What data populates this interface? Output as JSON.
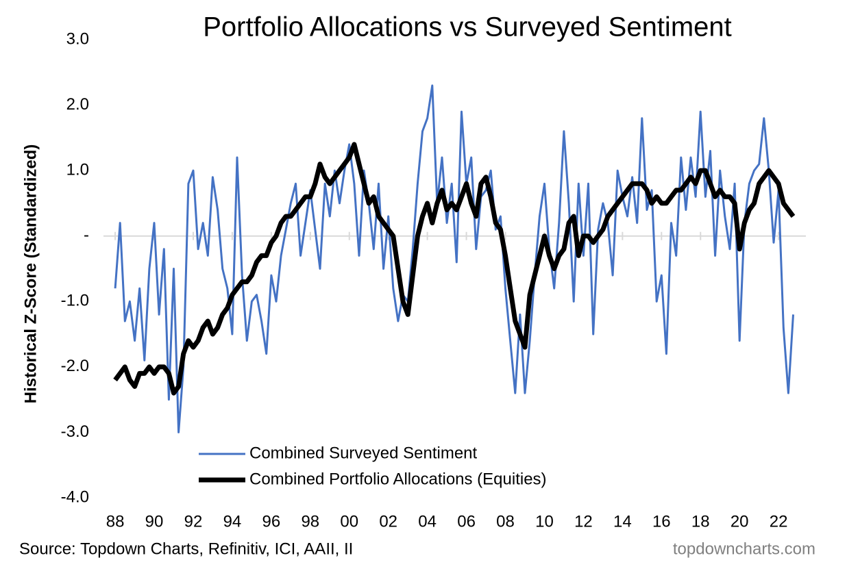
{
  "chart_data": {
    "type": "line",
    "title": "Portfolio Allocations vs Surveyed Sentiment",
    "y_label": "Historical Z-Score (Standardized)",
    "source": "Source: Topdown Charts, Refinitiv, ICI, AAII, II",
    "watermark": "topdowncharts.com",
    "xlim": [
      1987.4,
      2023.4
    ],
    "xticks": [
      {
        "value": 1988,
        "label": "88"
      },
      {
        "value": 1990,
        "label": "90"
      },
      {
        "value": 1992,
        "label": "92"
      },
      {
        "value": 1994,
        "label": "94"
      },
      {
        "value": 1996,
        "label": "96"
      },
      {
        "value": 1998,
        "label": "98"
      },
      {
        "value": 2000,
        "label": "00"
      },
      {
        "value": 2002,
        "label": "02"
      },
      {
        "value": 2004,
        "label": "04"
      },
      {
        "value": 2006,
        "label": "06"
      },
      {
        "value": 2008,
        "label": "08"
      },
      {
        "value": 2010,
        "label": "10"
      },
      {
        "value": 2012,
        "label": "12"
      },
      {
        "value": 2014,
        "label": "14"
      },
      {
        "value": 2016,
        "label": "16"
      },
      {
        "value": 2018,
        "label": "18"
      },
      {
        "value": 2020,
        "label": "20"
      },
      {
        "value": 2022,
        "label": "22"
      }
    ],
    "ylim": [
      -4,
      3
    ],
    "yticks": [
      {
        "value": 3,
        "label": "3.0"
      },
      {
        "value": 2,
        "label": "2.0"
      },
      {
        "value": 1,
        "label": "1.0"
      },
      {
        "value": 0,
        "label": "-"
      },
      {
        "value": -1,
        "label": "-1.0"
      },
      {
        "value": -2,
        "label": "-2.0"
      },
      {
        "value": -3,
        "label": "-3.0"
      },
      {
        "value": -4,
        "label": "-4.0"
      }
    ],
    "zero_line": true,
    "x": [
      1988,
      1988.25,
      1988.5,
      1988.75,
      1989,
      1989.25,
      1989.5,
      1989.75,
      1990,
      1990.25,
      1990.5,
      1990.75,
      1991,
      1991.25,
      1991.5,
      1991.75,
      1992,
      1992.25,
      1992.5,
      1992.75,
      1993,
      1993.25,
      1993.5,
      1993.75,
      1994,
      1994.25,
      1994.5,
      1994.75,
      1995,
      1995.25,
      1995.5,
      1995.75,
      1996,
      1996.25,
      1996.5,
      1996.75,
      1997,
      1997.25,
      1997.5,
      1997.75,
      1998,
      1998.25,
      1998.5,
      1998.75,
      1999,
      1999.25,
      1999.5,
      1999.75,
      2000,
      2000.25,
      2000.5,
      2000.75,
      2001,
      2001.25,
      2001.5,
      2001.75,
      2002,
      2002.25,
      2002.5,
      2002.75,
      2003,
      2003.25,
      2003.5,
      2003.75,
      2004,
      2004.25,
      2004.5,
      2004.75,
      2005,
      2005.25,
      2005.5,
      2005.75,
      2006,
      2006.25,
      2006.5,
      2006.75,
      2007,
      2007.25,
      2007.5,
      2007.75,
      2008,
      2008.25,
      2008.5,
      2008.75,
      2009,
      2009.25,
      2009.5,
      2009.75,
      2010,
      2010.25,
      2010.5,
      2010.75,
      2011,
      2011.25,
      2011.5,
      2011.75,
      2012,
      2012.25,
      2012.5,
      2012.75,
      2013,
      2013.25,
      2013.5,
      2013.75,
      2014,
      2014.25,
      2014.5,
      2014.75,
      2015,
      2015.25,
      2015.5,
      2015.75,
      2016,
      2016.25,
      2016.5,
      2016.75,
      2017,
      2017.25,
      2017.5,
      2017.75,
      2018,
      2018.25,
      2018.5,
      2018.75,
      2019,
      2019.25,
      2019.5,
      2019.75,
      2020,
      2020.25,
      2020.5,
      2020.75,
      2021,
      2021.25,
      2021.5,
      2021.75,
      2022,
      2022.25,
      2022.5,
      2022.75
    ],
    "series": [
      {
        "name": "Combined Surveyed Sentiment",
        "color": "#4472c4",
        "width": 3,
        "values": [
          -0.8,
          0.2,
          -1.3,
          -1.0,
          -1.6,
          -0.8,
          -1.9,
          -0.5,
          0.2,
          -1.2,
          -0.2,
          -2.5,
          -0.5,
          -3.0,
          -2.0,
          0.8,
          1.0,
          -0.2,
          0.2,
          -0.3,
          0.9,
          0.4,
          -0.5,
          -0.8,
          -1.5,
          1.2,
          -0.6,
          -1.6,
          -1.0,
          -0.9,
          -1.3,
          -1.8,
          -0.6,
          -1.0,
          -0.3,
          0.1,
          0.5,
          0.8,
          -0.3,
          0.2,
          0.7,
          0.1,
          -0.5,
          0.8,
          0.3,
          1.0,
          0.5,
          1.0,
          1.4,
          0.8,
          -0.3,
          1.0,
          0.5,
          -0.2,
          0.8,
          -0.5,
          0.3,
          -0.8,
          -1.3,
          -0.9,
          -1.0,
          -0.2,
          0.8,
          1.6,
          1.8,
          2.3,
          0.5,
          1.2,
          0.2,
          0.8,
          -0.4,
          1.9,
          0.8,
          1.2,
          -0.2,
          0.6,
          0.7,
          1.0,
          0.1,
          0.3,
          -0.8,
          -1.6,
          -2.4,
          -1.2,
          -2.4,
          -1.6,
          -0.6,
          0.3,
          0.8,
          -0.2,
          -0.8,
          0.2,
          1.6,
          0.5,
          -1.0,
          0.8,
          -0.3,
          0.8,
          -1.5,
          0.1,
          0.5,
          0.2,
          -0.6,
          1.0,
          0.6,
          0.3,
          0.9,
          0.2,
          1.8,
          0.4,
          0.7,
          -1.0,
          -0.6,
          -1.8,
          0.2,
          -0.3,
          1.2,
          0.4,
          1.2,
          0.6,
          1.9,
          0.6,
          1.3,
          -0.3,
          1.0,
          0.3,
          -0.2,
          0.8,
          -1.6,
          0.2,
          0.8,
          1.0,
          1.1,
          1.8,
          1.0,
          -0.1,
          0.7,
          -1.4,
          -2.4,
          -1.2
        ]
      },
      {
        "name": "Combined Portfolio Allocations (Equities)",
        "color": "#000000",
        "width": 7,
        "values": [
          -2.2,
          -2.1,
          -2.0,
          -2.2,
          -2.3,
          -2.1,
          -2.1,
          -2.0,
          -2.1,
          -2.0,
          -2.0,
          -2.1,
          -2.4,
          -2.3,
          -1.8,
          -1.6,
          -1.7,
          -1.6,
          -1.4,
          -1.3,
          -1.5,
          -1.4,
          -1.2,
          -1.1,
          -0.9,
          -0.8,
          -0.7,
          -0.7,
          -0.6,
          -0.4,
          -0.3,
          -0.3,
          -0.1,
          0.0,
          0.2,
          0.3,
          0.3,
          0.4,
          0.5,
          0.6,
          0.6,
          0.8,
          1.1,
          0.9,
          0.8,
          0.9,
          1.0,
          1.1,
          1.2,
          1.4,
          1.1,
          0.8,
          0.5,
          0.6,
          0.3,
          0.2,
          0.1,
          0.0,
          -0.5,
          -1.0,
          -1.2,
          -0.6,
          0.0,
          0.3,
          0.5,
          0.2,
          0.5,
          0.7,
          0.4,
          0.5,
          0.4,
          0.6,
          0.8,
          0.5,
          0.3,
          0.8,
          0.9,
          0.6,
          0.2,
          0.1,
          -0.3,
          -0.8,
          -1.3,
          -1.5,
          -1.7,
          -0.9,
          -0.6,
          -0.3,
          0.0,
          -0.3,
          -0.5,
          -0.3,
          -0.2,
          0.2,
          0.3,
          -0.3,
          0.0,
          0.0,
          -0.1,
          0.0,
          0.1,
          0.3,
          0.4,
          0.5,
          0.6,
          0.7,
          0.8,
          0.8,
          0.8,
          0.7,
          0.5,
          0.6,
          0.5,
          0.5,
          0.6,
          0.7,
          0.7,
          0.8,
          0.9,
          0.8,
          1.0,
          1.0,
          0.8,
          0.6,
          0.7,
          0.6,
          0.6,
          0.5,
          -0.2,
          0.2,
          0.4,
          0.5,
          0.8,
          0.9,
          1.0,
          0.9,
          0.8,
          0.5,
          0.4,
          0.3
        ]
      }
    ]
  }
}
